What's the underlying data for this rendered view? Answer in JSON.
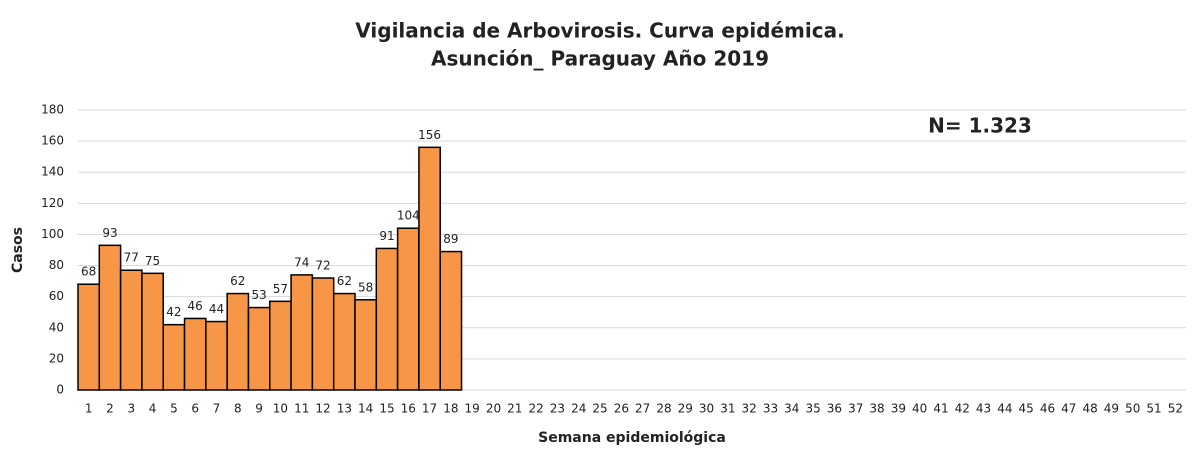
{
  "chart_data": {
    "type": "bar",
    "title": [
      "Vigilancia de Arbovirosis. Curva epidémica.",
      "Asunción_ Paraguay Año 2019"
    ],
    "annotation": "N= 1.323",
    "x_label": "Semana epidemiológica",
    "y_label": "Casos",
    "categories": [
      1,
      2,
      3,
      4,
      5,
      6,
      7,
      8,
      9,
      10,
      11,
      12,
      13,
      14,
      15,
      16,
      17,
      18,
      19,
      20,
      21,
      22,
      23,
      24,
      25,
      26,
      27,
      28,
      29,
      30,
      31,
      32,
      33,
      34,
      35,
      36,
      37,
      38,
      39,
      40,
      41,
      42,
      43,
      44,
      45,
      46,
      47,
      48,
      49,
      50,
      51,
      52
    ],
    "values": [
      68,
      93,
      77,
      75,
      42,
      46,
      44,
      62,
      53,
      57,
      74,
      72,
      62,
      58,
      91,
      104,
      156,
      89,
      null,
      null,
      null,
      null,
      null,
      null,
      null,
      null,
      null,
      null,
      null,
      null,
      null,
      null,
      null,
      null,
      null,
      null,
      null,
      null,
      null,
      null,
      null,
      null,
      null,
      null,
      null,
      null,
      null,
      null,
      null,
      null,
      null,
      null
    ],
    "color": "#f79646",
    "ylim": [
      0,
      180
    ],
    "yticks": [
      0,
      20,
      40,
      60,
      80,
      100,
      120,
      140,
      160,
      180
    ],
    "grid": true
  }
}
